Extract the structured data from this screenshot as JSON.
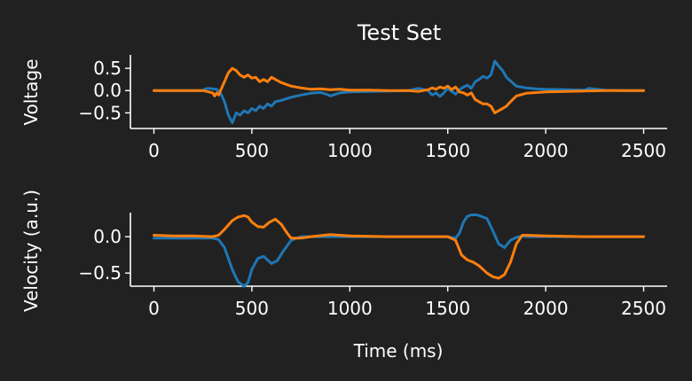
{
  "chart_data": [
    {
      "type": "line",
      "title": "Test Set",
      "xlabel": "",
      "ylabel": "Voltage",
      "xlim": [
        -120,
        2620
      ],
      "ylim": [
        -0.85,
        0.8
      ],
      "xticks": [
        0,
        500,
        1000,
        1500,
        2000,
        2500
      ],
      "xtick_labels": [
        "0",
        "500",
        "1000",
        "1500",
        "2000",
        "2500"
      ],
      "yticks": [
        0.5,
        0.0,
        -0.5
      ],
      "ytick_labels": [
        "0.5",
        "0.0",
        "−0.5"
      ],
      "grid": false,
      "series": [
        {
          "color": "#1f77b4",
          "x": [
            0,
            250,
            265,
            280,
            300,
            320,
            340,
            360,
            380,
            400,
            410,
            420,
            440,
            460,
            480,
            500,
            520,
            540,
            560,
            580,
            600,
            620,
            650,
            700,
            750,
            800,
            850,
            880,
            900,
            950,
            1000,
            1100,
            1200,
            1300,
            1350,
            1400,
            1420,
            1440,
            1460,
            1480,
            1500,
            1520,
            1540,
            1560,
            1580,
            1600,
            1620,
            1640,
            1660,
            1680,
            1700,
            1720,
            1740,
            1760,
            1780,
            1800,
            1850,
            1900,
            1950,
            2000,
            2100,
            2200,
            2220,
            2300,
            2400,
            2500
          ],
          "y": [
            0,
            0,
            0.04,
            0.05,
            0.04,
            0.03,
            -0.05,
            -0.25,
            -0.55,
            -0.72,
            -0.62,
            -0.5,
            -0.55,
            -0.45,
            -0.5,
            -0.4,
            -0.45,
            -0.35,
            -0.4,
            -0.3,
            -0.35,
            -0.25,
            -0.22,
            -0.15,
            -0.1,
            -0.06,
            -0.04,
            -0.08,
            -0.12,
            -0.05,
            -0.03,
            -0.02,
            -0.01,
            0,
            0.05,
            0,
            -0.1,
            -0.05,
            -0.13,
            -0.05,
            0.05,
            -0.02,
            -0.08,
            0.02,
            0.08,
            0.12,
            0.05,
            0.2,
            0.25,
            0.32,
            0.28,
            0.35,
            0.66,
            0.55,
            0.45,
            0.3,
            0.1,
            0.06,
            0.04,
            0.03,
            0.02,
            0.01,
            0.05,
            0.01,
            0,
            0
          ]
        },
        {
          "color": "#ff7f0e",
          "x": [
            0,
            250,
            300,
            310,
            320,
            330,
            340,
            360,
            380,
            400,
            420,
            440,
            460,
            480,
            500,
            520,
            540,
            560,
            580,
            600,
            620,
            650,
            700,
            750,
            800,
            850,
            900,
            950,
            1000,
            1100,
            1200,
            1300,
            1350,
            1400,
            1420,
            1440,
            1460,
            1480,
            1500,
            1520,
            1540,
            1560,
            1580,
            1600,
            1620,
            1640,
            1660,
            1680,
            1700,
            1720,
            1740,
            1760,
            1780,
            1800,
            1820,
            1850,
            1900,
            2000,
            2100,
            2200,
            2300,
            2400,
            2500
          ],
          "y": [
            0,
            0,
            -0.05,
            -0.12,
            -0.05,
            -0.1,
            0,
            0.2,
            0.4,
            0.5,
            0.45,
            0.35,
            0.3,
            0.35,
            0.28,
            0.3,
            0.2,
            0.25,
            0.2,
            0.3,
            0.25,
            0.18,
            0.1,
            0.06,
            0.03,
            0.04,
            0.02,
            0.03,
            0.01,
            0.01,
            0,
            0,
            -0.02,
            0.02,
            0.06,
            0.03,
            0.08,
            0.05,
            0.1,
            0.02,
            0.08,
            -0.03,
            -0.05,
            -0.1,
            -0.05,
            -0.2,
            -0.25,
            -0.3,
            -0.3,
            -0.35,
            -0.5,
            -0.45,
            -0.4,
            -0.35,
            -0.25,
            -0.12,
            -0.06,
            -0.03,
            -0.02,
            -0.01,
            0,
            0,
            0
          ]
        }
      ]
    },
    {
      "type": "line",
      "title": "",
      "xlabel": "Time (ms)",
      "ylabel": "Velocity (a.u.)",
      "xlim": [
        -120,
        2620
      ],
      "ylim": [
        -0.68,
        0.33
      ],
      "xticks": [
        0,
        500,
        1000,
        1500,
        2000,
        2500
      ],
      "xtick_labels": [
        "0",
        "500",
        "1000",
        "1500",
        "2000",
        "2500"
      ],
      "yticks": [
        0.0,
        -0.5
      ],
      "ytick_labels": [
        "0.0",
        "−0.5"
      ],
      "grid": false,
      "series": [
        {
          "color": "#1f77b4",
          "x": [
            0,
            300,
            330,
            360,
            400,
            430,
            460,
            480,
            500,
            530,
            560,
            580,
            600,
            630,
            660,
            700,
            750,
            800,
            900,
            1000,
            1200,
            1400,
            1500,
            1540,
            1560,
            1580,
            1600,
            1620,
            1650,
            1700,
            1730,
            1760,
            1790,
            1820,
            1850,
            1880,
            1900,
            2000,
            2200,
            2500
          ],
          "y": [
            -0.02,
            -0.02,
            -0.04,
            -0.15,
            -0.45,
            -0.62,
            -0.68,
            -0.63,
            -0.45,
            -0.3,
            -0.27,
            -0.32,
            -0.37,
            -0.33,
            -0.2,
            -0.05,
            0,
            0,
            0,
            0,
            0,
            0,
            0,
            -0.02,
            0.05,
            0.2,
            0.28,
            0.3,
            0.3,
            0.25,
            0.08,
            -0.1,
            -0.15,
            -0.05,
            -0.01,
            0.01,
            0,
            0,
            0,
            0
          ]
        },
        {
          "color": "#ff7f0e",
          "x": [
            0,
            100,
            200,
            300,
            330,
            360,
            400,
            430,
            460,
            480,
            500,
            530,
            560,
            590,
            620,
            650,
            680,
            700,
            750,
            800,
            900,
            1000,
            1200,
            1400,
            1500,
            1540,
            1570,
            1600,
            1630,
            1660,
            1700,
            1730,
            1760,
            1790,
            1820,
            1850,
            1880,
            1900,
            2000,
            2200,
            2500
          ],
          "y": [
            0.02,
            0.01,
            0.01,
            0,
            0.02,
            0.1,
            0.22,
            0.27,
            0.29,
            0.27,
            0.2,
            0.14,
            0.13,
            0.2,
            0.24,
            0.17,
            0.05,
            -0.02,
            -0.02,
            0,
            0.03,
            0.01,
            0,
            0,
            0,
            -0.05,
            -0.25,
            -0.32,
            -0.35,
            -0.4,
            -0.5,
            -0.55,
            -0.57,
            -0.52,
            -0.35,
            -0.1,
            0.02,
            0.02,
            0.01,
            0,
            0
          ]
        }
      ]
    }
  ]
}
